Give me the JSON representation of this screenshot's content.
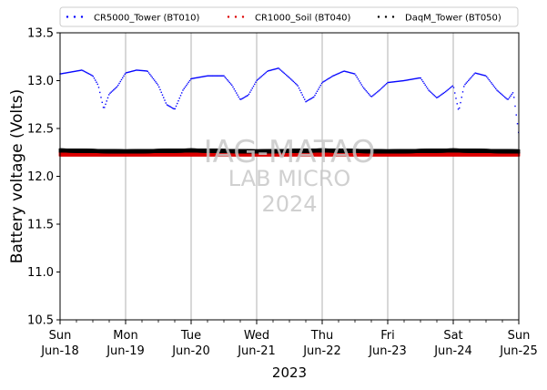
{
  "chart_data": {
    "type": "scatter",
    "ylabel": "Battery voltage (Volts)",
    "xlabel": "2023",
    "ylim": [
      10.5,
      13.5
    ],
    "xlim": [
      "2023-06-18",
      "2023-06-25"
    ],
    "grid": "vertical day lines",
    "legend_position": "top",
    "yticks": [
      "10.5",
      "11.0",
      "11.5",
      "12.0",
      "12.5",
      "13.0",
      "13.5"
    ],
    "xticks": [
      {
        "day": "Sun",
        "date": "Jun-18"
      },
      {
        "day": "Mon",
        "date": "Jun-19"
      },
      {
        "day": "Tue",
        "date": "Jun-20"
      },
      {
        "day": "Wed",
        "date": "Jun-21"
      },
      {
        "day": "Thu",
        "date": "Jun-22"
      },
      {
        "day": "Fri",
        "date": "Jun-23"
      },
      {
        "day": "Sat",
        "date": "Jun-24"
      },
      {
        "day": "Sun",
        "date": "Jun-25"
      }
    ],
    "watermark": [
      "IAG-MATAO",
      "LAB MICRO",
      "2024"
    ],
    "series": [
      {
        "name": "CR5000_Tower (BT010)",
        "color": "#0000ff",
        "points": [
          [
            "2023-06-18 00:00",
            13.07
          ],
          [
            "2023-06-18 04:00",
            13.09
          ],
          [
            "2023-06-18 08:00",
            13.11
          ],
          [
            "2023-06-18 12:00",
            13.05
          ],
          [
            "2023-06-18 14:00",
            12.95
          ],
          [
            "2023-06-18 16:00",
            12.7
          ],
          [
            "2023-06-18 18:00",
            12.86
          ],
          [
            "2023-06-18 21:00",
            12.94
          ],
          [
            "2023-06-19 00:00",
            13.08
          ],
          [
            "2023-06-19 04:00",
            13.11
          ],
          [
            "2023-06-19 08:00",
            13.1
          ],
          [
            "2023-06-19 12:00",
            12.95
          ],
          [
            "2023-06-19 15:00",
            12.75
          ],
          [
            "2023-06-19 18:00",
            12.7
          ],
          [
            "2023-06-19 21:00",
            12.9
          ],
          [
            "2023-06-20 00:00",
            13.02
          ],
          [
            "2023-06-20 06:00",
            13.05
          ],
          [
            "2023-06-20 12:00",
            13.05
          ],
          [
            "2023-06-20 15:00",
            12.95
          ],
          [
            "2023-06-20 18:00",
            12.8
          ],
          [
            "2023-06-20 21:00",
            12.85
          ],
          [
            "2023-06-21 00:00",
            13.0
          ],
          [
            "2023-06-21 04:00",
            13.1
          ],
          [
            "2023-06-21 08:00",
            13.13
          ],
          [
            "2023-06-21 12:00",
            13.03
          ],
          [
            "2023-06-21 15:00",
            12.95
          ],
          [
            "2023-06-21 18:00",
            12.78
          ],
          [
            "2023-06-21 21:00",
            12.83
          ],
          [
            "2023-06-22 00:00",
            12.98
          ],
          [
            "2023-06-22 04:00",
            13.05
          ],
          [
            "2023-06-22 08:00",
            13.1
          ],
          [
            "2023-06-22 12:00",
            13.07
          ],
          [
            "2023-06-22 15:00",
            12.93
          ],
          [
            "2023-06-22 18:00",
            12.83
          ],
          [
            "2023-06-22 21:00",
            12.9
          ],
          [
            "2023-06-23 00:00",
            12.98
          ],
          [
            "2023-06-23 06:00",
            13.0
          ],
          [
            "2023-06-23 12:00",
            13.03
          ],
          [
            "2023-06-23 15:00",
            12.9
          ],
          [
            "2023-06-23 18:00",
            12.82
          ],
          [
            "2023-06-23 21:00",
            12.88
          ],
          [
            "2023-06-24 00:00",
            12.95
          ],
          [
            "2023-06-24 02:00",
            12.68
          ],
          [
            "2023-06-24 04:00",
            12.95
          ],
          [
            "2023-06-24 08:00",
            13.08
          ],
          [
            "2023-06-24 12:00",
            13.05
          ],
          [
            "2023-06-24 16:00",
            12.9
          ],
          [
            "2023-06-24 20:00",
            12.8
          ],
          [
            "2023-06-24 22:00",
            12.88
          ],
          [
            "2023-06-25 00:00",
            12.44
          ]
        ]
      },
      {
        "name": "CR1000_Soil (BT040)",
        "color": "#dd0000",
        "points": [
          [
            "2023-06-18 00:00",
            12.23
          ],
          [
            "2023-06-19 00:00",
            12.23
          ],
          [
            "2023-06-20 00:00",
            12.23
          ],
          [
            "2023-06-21 00:00",
            12.23
          ],
          [
            "2023-06-22 00:00",
            12.23
          ],
          [
            "2023-06-23 00:00",
            12.23
          ],
          [
            "2023-06-24 00:00",
            12.23
          ],
          [
            "2023-06-25 00:00",
            12.23
          ]
        ]
      },
      {
        "name": "DaqM_Tower (BT050)",
        "color": "#000000",
        "points": [
          [
            "2023-06-18 00:00",
            12.27
          ],
          [
            "2023-06-19 00:00",
            12.26
          ],
          [
            "2023-06-20 00:00",
            12.27
          ],
          [
            "2023-06-21 00:00",
            12.26
          ],
          [
            "2023-06-22 00:00",
            12.27
          ],
          [
            "2023-06-23 00:00",
            12.26
          ],
          [
            "2023-06-24 00:00",
            12.27
          ],
          [
            "2023-06-25 00:00",
            12.26
          ]
        ]
      }
    ]
  }
}
